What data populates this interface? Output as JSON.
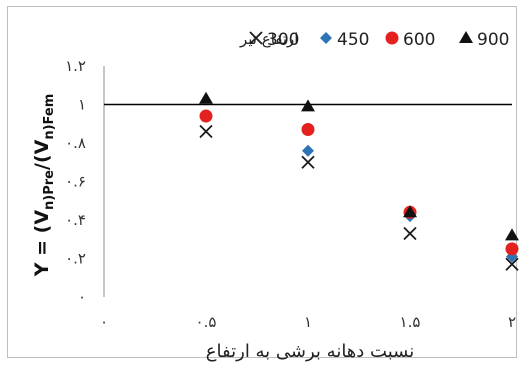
{
  "chart_data": {
    "type": "scatter",
    "title": "",
    "xlabel": "نسبت دهانه برشی به ارتفاع",
    "ylabel": "Y = (Vn)Pre/(Vn)Fem",
    "ylabel_parts": {
      "lhs": "Y = (V",
      "n1": "n",
      "pre": ")Pre",
      "mid": "/(V",
      "n2": "n",
      "fem": ")Fem"
    },
    "xlim": [
      0,
      2
    ],
    "ylim": [
      0,
      1.2
    ],
    "x_ticks": [
      0,
      0.5,
      1,
      1.5,
      2
    ],
    "x_tick_labels": [
      "۰",
      "۰.۵",
      "۱",
      "۱.۵",
      "۲"
    ],
    "y_ticks": [
      0,
      0.2,
      0.4,
      0.6,
      0.8,
      1,
      1.2
    ],
    "y_tick_labels": [
      "۰",
      "۰.۲",
      "۰.۴",
      "۰.۶",
      "۰.۸",
      "۱",
      "۱.۲"
    ],
    "grid": false,
    "legend_position": "top",
    "legend_title": "ارتفاع تیر",
    "reference_line": {
      "y": 1.0,
      "color": "#000000"
    },
    "series": [
      {
        "name": "300",
        "marker": "x",
        "color": "#1a1a1a",
        "x": [
          0.5,
          1,
          1.5,
          2
        ],
        "y": [
          0.86,
          0.7,
          0.33,
          0.17
        ]
      },
      {
        "name": "450",
        "marker": "diamond",
        "color": "#2e74b5",
        "x": [
          0.5,
          1,
          1.5,
          2
        ],
        "y": [
          0.94,
          0.76,
          0.42,
          0.21
        ]
      },
      {
        "name": "600",
        "marker": "circle",
        "color": "#e3211f",
        "x": [
          0.5,
          1,
          1.5,
          2
        ],
        "y": [
          0.94,
          0.87,
          0.44,
          0.25
        ]
      },
      {
        "name": "900",
        "marker": "triangle",
        "color": "#111111",
        "x": [
          0.5,
          1,
          1.5,
          2
        ],
        "y": [
          1.03,
          0.99,
          0.44,
          0.32
        ]
      }
    ]
  }
}
